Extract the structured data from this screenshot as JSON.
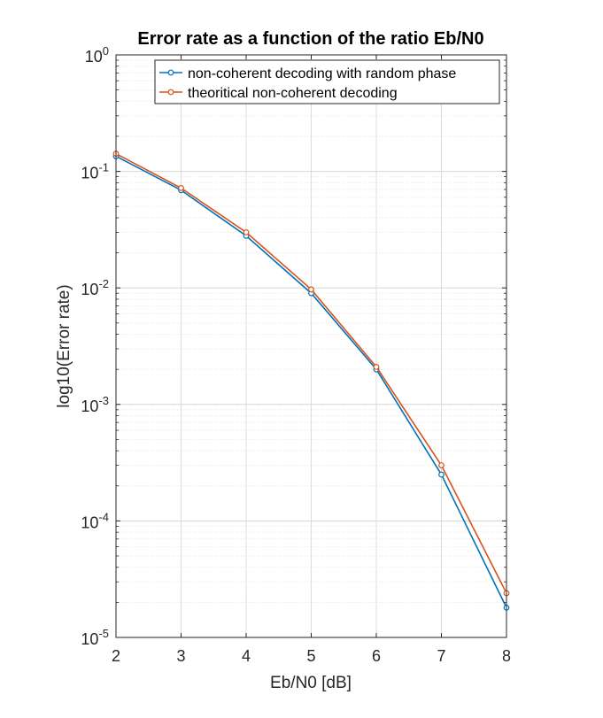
{
  "chart_data": {
    "type": "line",
    "title": "Error rate as a function of the ratio Eb/N0",
    "xlabel": "Eb/N0 [dB]",
    "ylabel": "log10(Error rate)",
    "x": [
      2,
      3,
      4,
      5,
      6,
      7,
      8
    ],
    "xlim": [
      2,
      8
    ],
    "xticks": [
      "2",
      "3",
      "4",
      "5",
      "6",
      "7",
      "8"
    ],
    "ylim": [
      1e-05,
      1
    ],
    "yscale": "log",
    "yticks": [
      {
        "base": "10",
        "exp": "0"
      },
      {
        "base": "10",
        "exp": "-1"
      },
      {
        "base": "10",
        "exp": "-2"
      },
      {
        "base": "10",
        "exp": "-3"
      },
      {
        "base": "10",
        "exp": "-4"
      },
      {
        "base": "10",
        "exp": "-5"
      }
    ],
    "grid": true,
    "minor_grid": true,
    "legend_position": "top-right",
    "series": [
      {
        "name": "non-coherent decoding with random phase",
        "color": "#0072BD",
        "marker": "circle",
        "values": [
          0.135,
          0.069,
          0.028,
          0.009,
          0.002,
          0.00025,
          1.8e-05
        ]
      },
      {
        "name": "theoritical non-coherent decoding",
        "color": "#D95319",
        "marker": "circle",
        "values": [
          0.142,
          0.072,
          0.03,
          0.0097,
          0.0021,
          0.0003,
          2.4e-05
        ]
      }
    ]
  }
}
